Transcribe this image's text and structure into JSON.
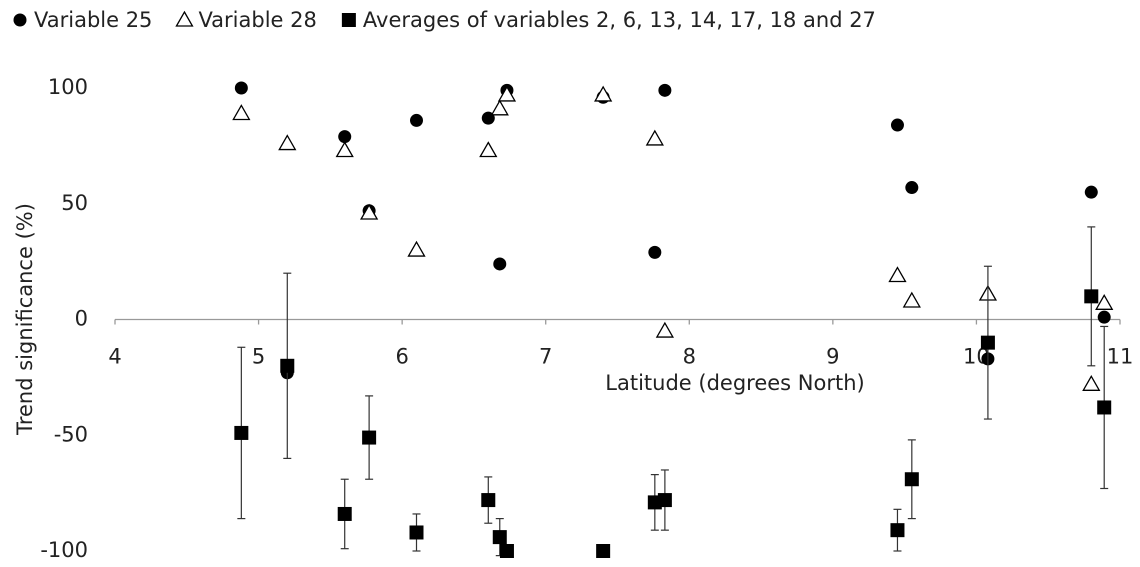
{
  "chart_data": {
    "type": "scatter",
    "x_label": "Latitude (degrees North)",
    "y_label": "Trend significance (%)",
    "xlim": [
      4,
      11
    ],
    "xticks": [
      4,
      5,
      6,
      7,
      8,
      9,
      10,
      11
    ],
    "ylim": [
      -100,
      100
    ],
    "yticks": [
      -100,
      -50,
      0,
      50,
      100
    ],
    "series": [
      {
        "name": "Variable 25",
        "marker": "circle",
        "color": "#000000",
        "x": [
          4.88,
          5.2,
          5.6,
          5.77,
          6.1,
          6.6,
          6.68,
          6.73,
          7.4,
          7.76,
          7.83,
          9.45,
          9.55,
          10.08,
          10.8,
          10.89
        ],
        "values": [
          100,
          -23,
          79,
          47,
          86,
          87,
          24,
          99,
          96,
          29,
          99,
          84,
          57,
          -17,
          55,
          1
        ]
      },
      {
        "name": "Variable 28",
        "marker": "triangle",
        "color": "#000000",
        "x": [
          4.88,
          5.2,
          5.6,
          5.77,
          6.1,
          6.6,
          6.68,
          6.73,
          7.4,
          7.76,
          7.83,
          9.45,
          9.55,
          10.08,
          10.8,
          10.89
        ],
        "values": [
          89,
          76,
          73,
          46,
          30,
          73,
          91,
          97,
          97,
          78,
          -5,
          19,
          8,
          11,
          -28,
          7
        ]
      },
      {
        "name": "Averages of variables 2, 6, 13, 14, 17, 18 and 27",
        "marker": "square",
        "color": "#000000",
        "x": [
          4.88,
          5.2,
          5.6,
          5.77,
          6.1,
          6.6,
          6.68,
          6.73,
          7.4,
          7.76,
          7.83,
          9.45,
          9.55,
          10.08,
          10.8,
          10.89
        ],
        "values": [
          -49,
          -20,
          -84,
          -51,
          -92,
          -78,
          -94,
          -100,
          -100,
          -79,
          -78,
          -91,
          -69,
          -10,
          10,
          -38
        ],
        "errors": [
          37,
          40,
          15,
          18,
          8,
          10,
          8,
          0,
          0,
          12,
          13,
          9,
          17,
          33,
          30,
          35
        ]
      }
    ]
  }
}
